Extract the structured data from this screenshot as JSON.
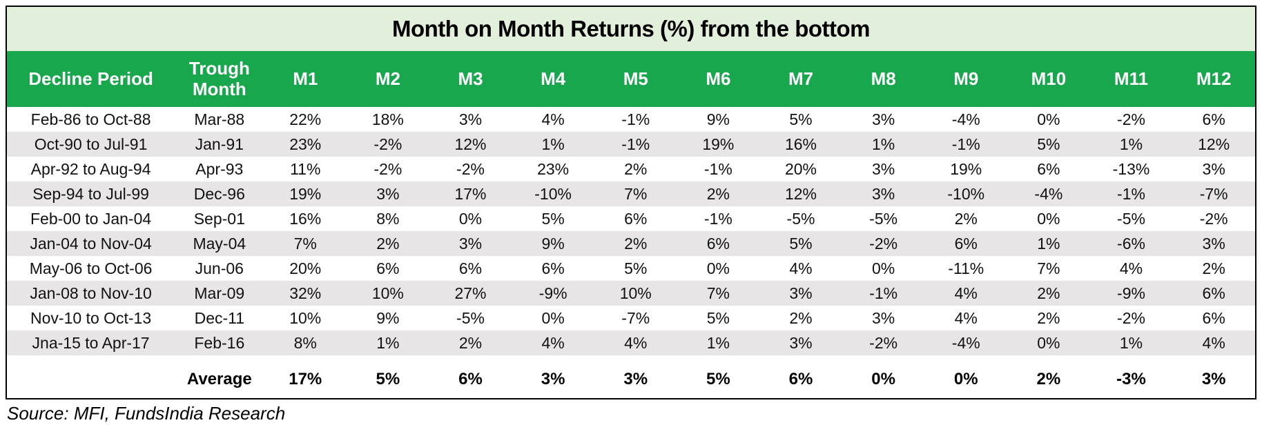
{
  "title": "Month on Month Returns (%) from the bottom",
  "source": "Source: MFI, FundsIndia Research",
  "colors": {
    "title_bg": "#e2efda",
    "header_bg": "#18a74d",
    "header_text": "#ffffff",
    "alt_row_bg": "#e7e5e5",
    "border": "#000000"
  },
  "table": {
    "decline_header": "Decline Period",
    "trough_header": "Trough Month",
    "month_headers": [
      "M1",
      "M2",
      "M3",
      "M4",
      "M5",
      "M6",
      "M7",
      "M8",
      "M9",
      "M10",
      "M11",
      "M12"
    ],
    "rows": [
      {
        "decline_period": "Feb-86 to Oct-88",
        "trough_month": "Mar-88",
        "values": [
          "22%",
          "18%",
          "3%",
          "4%",
          "-1%",
          "9%",
          "5%",
          "3%",
          "-4%",
          "0%",
          "-2%",
          "6%"
        ]
      },
      {
        "decline_period": "Oct-90 to Jul-91",
        "trough_month": "Jan-91",
        "values": [
          "23%",
          "-2%",
          "12%",
          "1%",
          "-1%",
          "19%",
          "16%",
          "1%",
          "-1%",
          "5%",
          "1%",
          "12%"
        ]
      },
      {
        "decline_period": "Apr-92 to Aug-94",
        "trough_month": "Apr-93",
        "values": [
          "11%",
          "-2%",
          "-2%",
          "23%",
          "2%",
          "-1%",
          "20%",
          "3%",
          "19%",
          "6%",
          "-13%",
          "3%"
        ]
      },
      {
        "decline_period": "Sep-94 to Jul-99",
        "trough_month": "Dec-96",
        "values": [
          "19%",
          "3%",
          "17%",
          "-10%",
          "7%",
          "2%",
          "12%",
          "3%",
          "-10%",
          "-4%",
          "-1%",
          "-7%"
        ]
      },
      {
        "decline_period": "Feb-00 to Jan-04",
        "trough_month": "Sep-01",
        "values": [
          "16%",
          "8%",
          "0%",
          "5%",
          "6%",
          "-1%",
          "-5%",
          "-5%",
          "2%",
          "0%",
          "-5%",
          "-2%"
        ]
      },
      {
        "decline_period": "Jan-04 to Nov-04",
        "trough_month": "May-04",
        "values": [
          "7%",
          "2%",
          "3%",
          "9%",
          "2%",
          "6%",
          "5%",
          "-2%",
          "6%",
          "1%",
          "-6%",
          "3%"
        ]
      },
      {
        "decline_period": "May-06 to Oct-06",
        "trough_month": "Jun-06",
        "values": [
          "20%",
          "6%",
          "6%",
          "6%",
          "5%",
          "0%",
          "4%",
          "0%",
          "-11%",
          "7%",
          "4%",
          "2%"
        ]
      },
      {
        "decline_period": "Jan-08 to Nov-10",
        "trough_month": "Mar-09",
        "values": [
          "32%",
          "10%",
          "27%",
          "-9%",
          "10%",
          "7%",
          "3%",
          "-1%",
          "4%",
          "2%",
          "-9%",
          "6%"
        ]
      },
      {
        "decline_period": "Nov-10 to Oct-13",
        "trough_month": "Dec-11",
        "values": [
          "10%",
          "9%",
          "-5%",
          "0%",
          "-7%",
          "5%",
          "2%",
          "3%",
          "4%",
          "2%",
          "-2%",
          "6%"
        ]
      },
      {
        "decline_period": "Jna-15 to Apr-17",
        "trough_month": "Feb-16",
        "values": [
          "8%",
          "1%",
          "2%",
          "4%",
          "4%",
          "1%",
          "3%",
          "-2%",
          "-4%",
          "0%",
          "1%",
          "4%"
        ]
      }
    ],
    "average": {
      "label": "Average",
      "values": [
        "17%",
        "5%",
        "6%",
        "3%",
        "3%",
        "5%",
        "6%",
        "0%",
        "0%",
        "2%",
        "-3%",
        "3%"
      ]
    }
  },
  "chart_data": {
    "type": "table",
    "title": "Month on Month Returns (%) from the bottom",
    "units": "percent",
    "columns": [
      "Decline Period",
      "Trough Month",
      "M1",
      "M2",
      "M3",
      "M4",
      "M5",
      "M6",
      "M7",
      "M8",
      "M9",
      "M10",
      "M11",
      "M12"
    ],
    "rows": [
      [
        "Feb-86 to Oct-88",
        "Mar-88",
        22,
        18,
        3,
        4,
        -1,
        9,
        5,
        3,
        -4,
        0,
        -2,
        6
      ],
      [
        "Oct-90 to Jul-91",
        "Jan-91",
        23,
        -2,
        12,
        1,
        -1,
        19,
        16,
        1,
        -1,
        5,
        1,
        12
      ],
      [
        "Apr-92 to Aug-94",
        "Apr-93",
        11,
        -2,
        -2,
        23,
        2,
        -1,
        20,
        3,
        19,
        6,
        -13,
        3
      ],
      [
        "Sep-94 to Jul-99",
        "Dec-96",
        19,
        3,
        17,
        -10,
        7,
        2,
        12,
        3,
        -10,
        -4,
        -1,
        -7
      ],
      [
        "Feb-00 to Jan-04",
        "Sep-01",
        16,
        8,
        0,
        5,
        6,
        -1,
        -5,
        -5,
        2,
        0,
        -5,
        -2
      ],
      [
        "Jan-04 to Nov-04",
        "May-04",
        7,
        2,
        3,
        9,
        2,
        6,
        5,
        -2,
        6,
        1,
        -6,
        3
      ],
      [
        "May-06 to Oct-06",
        "Jun-06",
        20,
        6,
        6,
        6,
        5,
        0,
        4,
        0,
        -11,
        7,
        4,
        2
      ],
      [
        "Jan-08 to Nov-10",
        "Mar-09",
        32,
        10,
        27,
        -9,
        10,
        7,
        3,
        -1,
        4,
        2,
        -9,
        6
      ],
      [
        "Nov-10 to Oct-13",
        "Dec-11",
        10,
        9,
        -5,
        0,
        -7,
        5,
        2,
        3,
        4,
        2,
        -2,
        6
      ],
      [
        "Jna-15 to Apr-17",
        "Feb-16",
        8,
        1,
        2,
        4,
        4,
        1,
        3,
        -2,
        -4,
        0,
        1,
        4
      ]
    ],
    "average_row": [
      "",
      "Average",
      17,
      5,
      6,
      3,
      3,
      5,
      6,
      0,
      0,
      2,
      -3,
      3
    ],
    "source": "Source: MFI, FundsIndia Research"
  }
}
